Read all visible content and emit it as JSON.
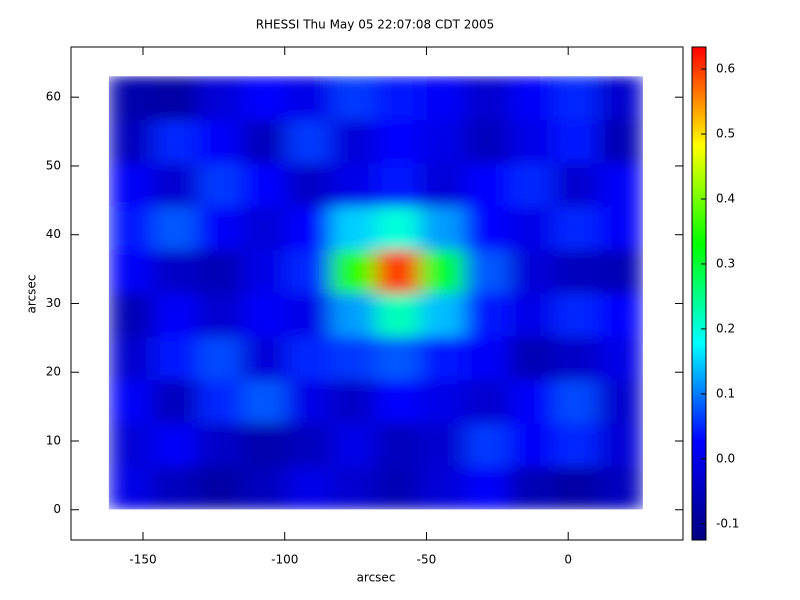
{
  "chart_data": {
    "type": "heatmap",
    "title": "RHESSI Thu May 05 22:07:08 CDT 2005",
    "xlabel": "arcsec",
    "ylabel": "arcsec",
    "xlim": [
      -175.4,
      40.5
    ],
    "xticks": [
      -150,
      -100,
      -50,
      0
    ],
    "ylim": [
      -4.4,
      67.3
    ],
    "yticks": [
      0,
      10,
      20,
      30,
      40,
      50,
      60
    ],
    "zlim": [
      -0.125,
      0.634
    ],
    "zticks": [
      -0.1,
      {
        "value": 0,
        "label": "0.0"
      },
      0.1,
      0.2,
      0.3,
      0.4,
      0.5,
      0.6
    ],
    "colormap": [
      "#00007f",
      "#0000ff",
      "#00ffff",
      "#00ff00",
      "#ffff00",
      "#ff0000"
    ],
    "x": [
      -154.2,
      -138.5,
      -122.8,
      -107.1,
      -91.4,
      -75.7,
      -60,
      -44.3,
      -28.6,
      -12.9,
      2.8,
      18.5
    ],
    "y": [
      3.2,
      9.5,
      15.8,
      22.1,
      28.4,
      34.7,
      41,
      47.3,
      53.6,
      59.9
    ],
    "z": [
      [
        0.0,
        -0.05,
        -0.08,
        -0.05,
        0.0,
        -0.03,
        -0.06,
        -0.02,
        0.02,
        -0.06,
        -0.08,
        -0.05
      ],
      [
        -0.02,
        0.02,
        -0.04,
        -0.07,
        -0.05,
        0.0,
        -0.05,
        -0.03,
        0.06,
        0.02,
        0.05,
        -0.02
      ],
      [
        0.02,
        -0.05,
        0.05,
        0.08,
        0.0,
        -0.04,
        0.03,
        0.0,
        -0.03,
        0.02,
        0.07,
        -0.03
      ],
      [
        -0.03,
        0.04,
        0.07,
        -0.02,
        0.05,
        0.06,
        0.08,
        0.04,
        0.02,
        -0.06,
        -0.04,
        0.0
      ],
      [
        -0.06,
        0.02,
        -0.03,
        0.02,
        0.0,
        0.12,
        0.22,
        0.14,
        0.04,
        0.0,
        0.05,
        0.03
      ],
      [
        0.02,
        -0.04,
        -0.06,
        0.0,
        0.05,
        0.35,
        0.6,
        0.3,
        0.08,
        -0.02,
        -0.05,
        -0.06
      ],
      [
        0.04,
        0.08,
        0.02,
        -0.02,
        0.03,
        0.15,
        0.2,
        0.12,
        0.03,
        0.0,
        0.05,
        0.02
      ],
      [
        0.02,
        -0.03,
        0.06,
        0.03,
        -0.04,
        0.0,
        0.04,
        -0.02,
        0.03,
        0.05,
        -0.03,
        0.02
      ],
      [
        -0.05,
        0.05,
        0.02,
        -0.05,
        0.06,
        -0.02,
        0.03,
        0.0,
        -0.05,
        0.0,
        0.04,
        -0.06
      ],
      [
        -0.07,
        -0.08,
        -0.02,
        0.03,
        0.0,
        0.06,
        0.04,
        0.02,
        -0.03,
        0.02,
        0.05,
        -0.03
      ]
    ]
  }
}
